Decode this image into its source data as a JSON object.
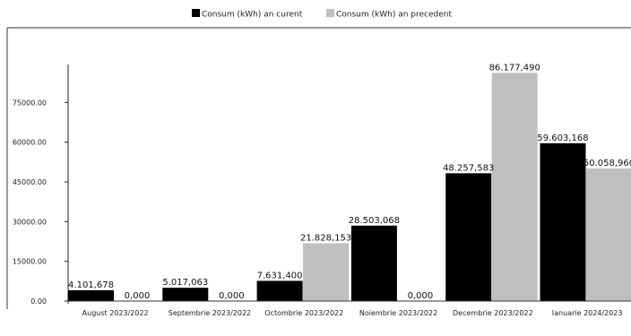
{
  "chart_data": {
    "type": "bar",
    "title": "",
    "xlabel": "",
    "ylabel": "",
    "ylim": [
      0,
      90000
    ],
    "yticks": [
      0,
      15000,
      30000,
      45000,
      60000,
      75000
    ],
    "ytick_labels": [
      "0.00",
      "15000.00",
      "30000.00",
      "45000.00",
      "60000.00",
      "75000.00"
    ],
    "categories": [
      "August 2023/2022",
      "Septembrie 2023/2022",
      "Octombrie 2023/2022",
      "Noiembrie 2023/2022",
      "Decembrie 2023/2022",
      "Ianuarie 2024/2023"
    ],
    "series": [
      {
        "name": "Consum (kWh) an curent",
        "color": "#000000",
        "values": [
          4101.678,
          5017.063,
          7631.4,
          28503.068,
          48257.583,
          59603.168
        ],
        "labels": [
          "4.101,678",
          "5.017,063",
          "7.631,400",
          "28.503,068",
          "48.257,583",
          "59.603,168"
        ]
      },
      {
        "name": "Consum (kWh) an precedent",
        "color": "#bfbfbf",
        "values": [
          0,
          0,
          21828.153,
          0,
          86177.49,
          50058.96
        ],
        "labels": [
          "0,000",
          "0,000",
          "21.828,153",
          "0,000",
          "86.177,490",
          "50.058,960"
        ]
      }
    ],
    "legend_position": "top-center",
    "grid": false
  }
}
